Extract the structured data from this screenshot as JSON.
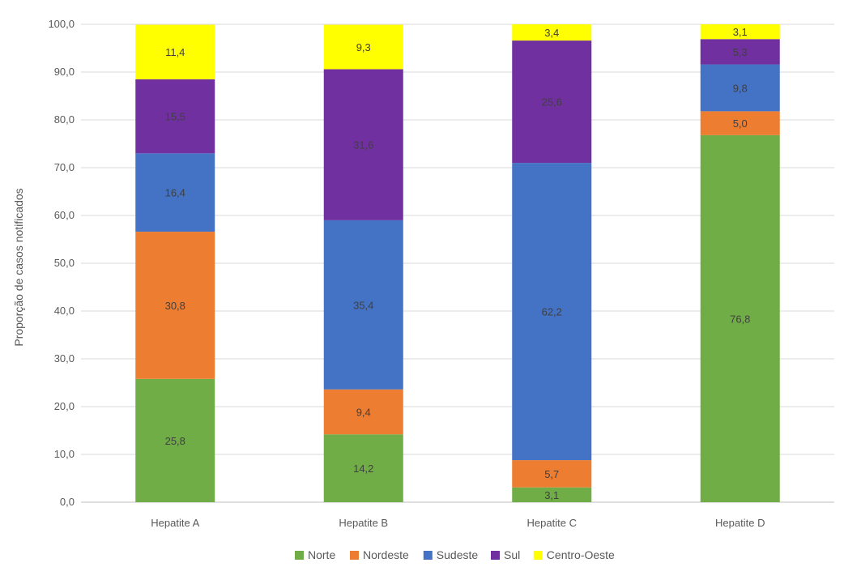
{
  "chart_data": {
    "type": "bar",
    "stacked": true,
    "title": "",
    "xlabel": "",
    "ylabel": "Proporção de casos notificados",
    "ylim": [
      0,
      100
    ],
    "yticks": [
      "0,0",
      "10,0",
      "20,0",
      "30,0",
      "40,0",
      "50,0",
      "60,0",
      "70,0",
      "80,0",
      "90,0",
      "100,0"
    ],
    "grid": true,
    "legend_position": "bottom",
    "categories": [
      "Hepatite A",
      "Hepatite B",
      "Hepatite C",
      "Hepatite D"
    ],
    "series": [
      {
        "name": "Norte",
        "color": "#70AD47",
        "values": [
          25.8,
          14.2,
          3.1,
          76.8
        ],
        "labels": [
          "25,8",
          "14,2",
          "3,1",
          "76,8"
        ]
      },
      {
        "name": "Nordeste",
        "color": "#ED7D31",
        "values": [
          30.8,
          9.4,
          5.7,
          5.0
        ],
        "labels": [
          "30,8",
          "9,4",
          "5,7",
          "5,0"
        ]
      },
      {
        "name": "Sudeste",
        "color": "#4472C4",
        "values": [
          16.4,
          35.4,
          62.2,
          9.8
        ],
        "labels": [
          "16,4",
          "35,4",
          "62,2",
          "9,8"
        ]
      },
      {
        "name": "Sul",
        "color": "#7030A0",
        "values": [
          15.5,
          31.6,
          25.6,
          5.3
        ],
        "labels": [
          "15,5",
          "31,6",
          "25,6",
          "5,3"
        ]
      },
      {
        "name": "Centro-Oeste",
        "color": "#FFFF00",
        "values": [
          11.4,
          9.3,
          3.4,
          3.1
        ],
        "labels": [
          "11,4",
          "9,3",
          "3,4",
          "3,1"
        ]
      }
    ]
  }
}
